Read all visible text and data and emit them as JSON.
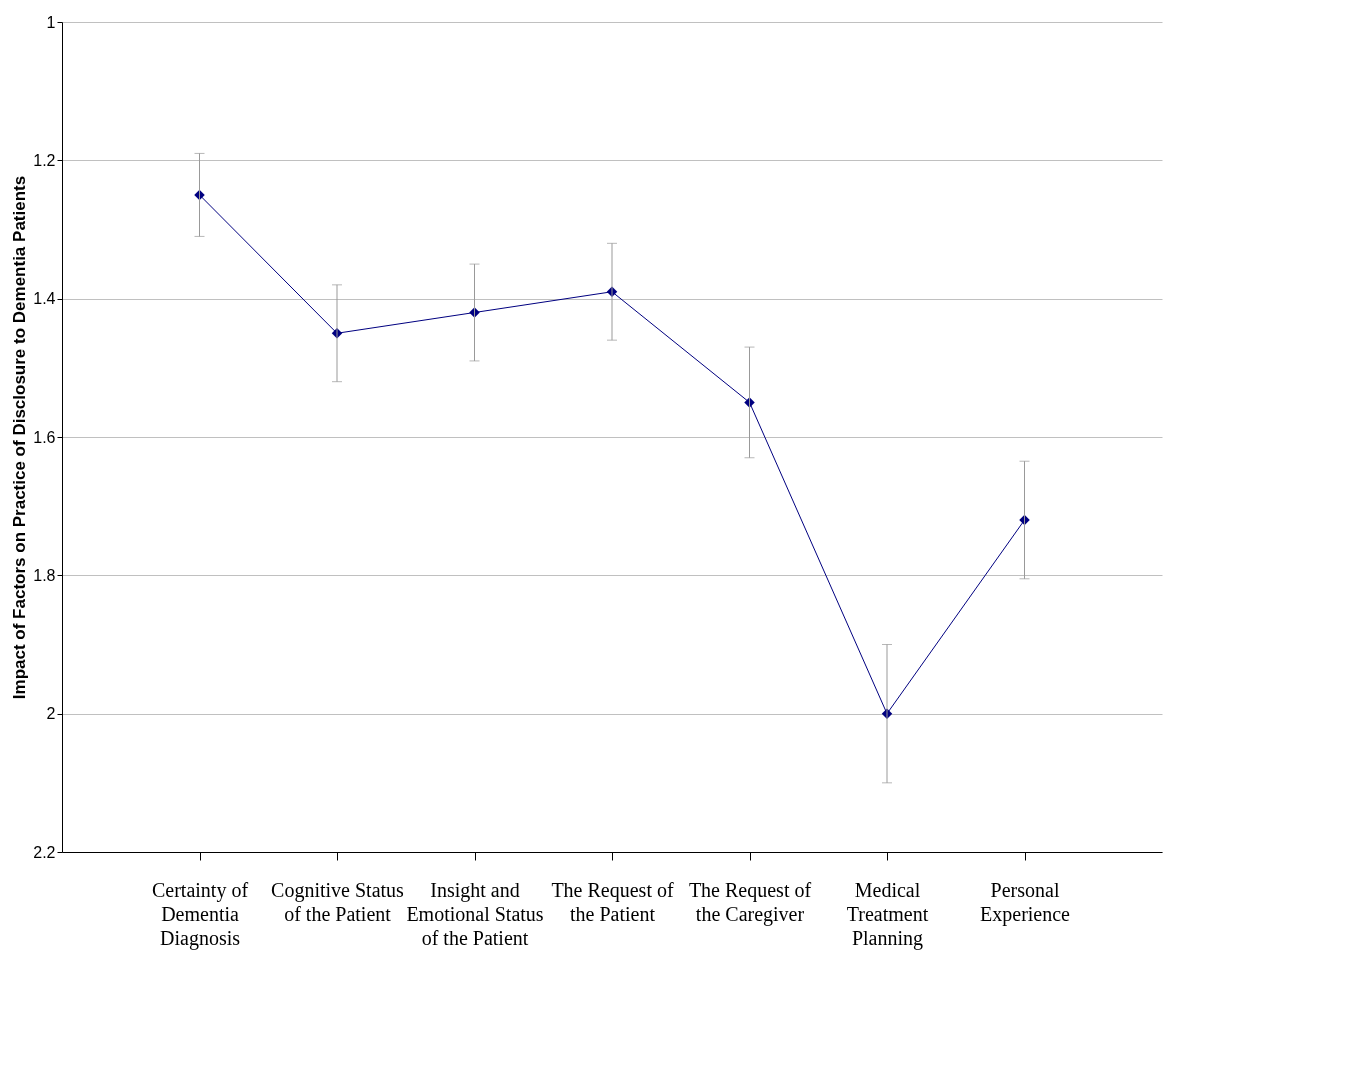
{
  "chart_data": {
    "type": "line",
    "ylabel": "Impact of Factors on Practice of Disclosure to Dementia Patients",
    "categories": [
      "Certainty of Dementia Diagnosis",
      "Cognitive Status of the Patient",
      "Insight and Emotional Status of the Patient",
      "The Request of the Patient",
      "The Request of the Caregiver",
      "Medical Treatment Planning",
      "Personal Experience"
    ],
    "series": [
      {
        "color": "#000080",
        "values": [
          1.25,
          1.45,
          1.42,
          1.39,
          1.55,
          2.0,
          1.72
        ],
        "errors": [
          0.06,
          0.07,
          0.07,
          0.07,
          0.08,
          0.1,
          0.085
        ]
      }
    ],
    "ylim": [
      2.2,
      1
    ],
    "yticks": [
      1,
      1.2,
      1.4,
      1.6,
      1.8,
      2,
      2.2
    ],
    "grid": "y",
    "marker": "diamond",
    "line_style": "solid"
  }
}
